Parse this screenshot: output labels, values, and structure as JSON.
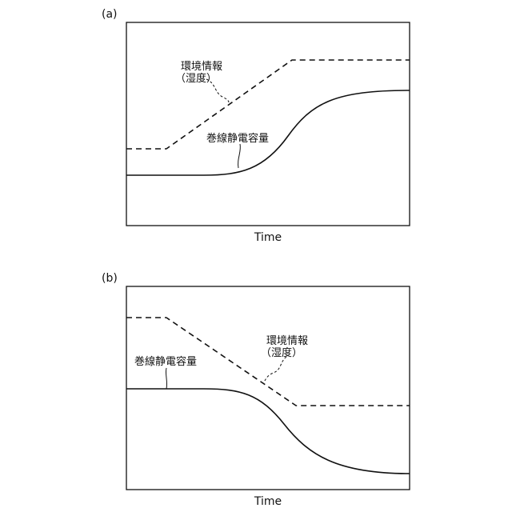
{
  "panels": [
    {
      "label": "(a)",
      "xlabel": "Time",
      "env_label_line1": "環境情報",
      "env_label_line2": "（湿度）",
      "cap_label": "巻線静電容量",
      "env_series": {
        "style": "dashed",
        "trend": "increasing"
      },
      "cap_series": {
        "style": "solid",
        "trend": "increasing"
      }
    },
    {
      "label": "(b)",
      "xlabel": "Time",
      "env_label_line1": "環境情報",
      "env_label_line2": "（湿度）",
      "cap_label": "巻線静電容量",
      "env_series": {
        "style": "dashed",
        "trend": "decreasing"
      },
      "cap_series": {
        "style": "solid",
        "trend": "decreasing"
      }
    }
  ]
}
